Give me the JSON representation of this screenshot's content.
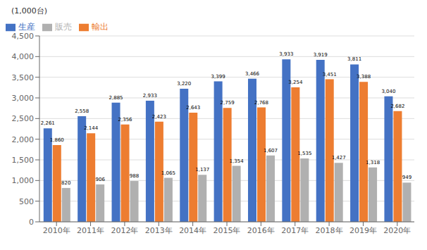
{
  "chart_data": {
    "type": "bar",
    "y_label": "(1,000台)",
    "categories": [
      "2010年",
      "2011年",
      "2012年",
      "2013年",
      "2014年",
      "2015年",
      "2016年",
      "2017年",
      "2018年",
      "2019年",
      "2020年"
    ],
    "series": [
      {
        "name": "生産",
        "color": "#4472C4",
        "values": [
          2261,
          2558,
          2885,
          2933,
          3220,
          3399,
          3466,
          3933,
          3919,
          3811,
          3040
        ],
        "value_labels": [
          "2,261",
          "2,558",
          "2,885",
          "2,933",
          "3,220",
          "3,399",
          "3,466",
          "3,933",
          "3,919",
          "3,811",
          "3,040"
        ]
      },
      {
        "name": "輸出",
        "color": "#ED7D31",
        "values": [
          1860,
          2144,
          2356,
          2423,
          2643,
          2759,
          2768,
          3254,
          3451,
          3388,
          2682
        ],
        "value_labels": [
          "1,860",
          "2,144",
          "2,356",
          "2,423",
          "2,643",
          "2,759",
          "2,768",
          "3,254",
          "3,451",
          "3,388",
          "2,682"
        ]
      },
      {
        "name": "販売",
        "color": "#B0B0B0",
        "values": [
          820,
          906,
          988,
          1065,
          1137,
          1354,
          1607,
          1535,
          1427,
          1318,
          949
        ],
        "value_labels": [
          "820",
          "906",
          "988",
          "1,065",
          "1,137",
          "1,354",
          "1,607",
          "1,535",
          "1,427",
          "1,318",
          "949"
        ]
      }
    ],
    "ylim": [
      0,
      4500
    ],
    "yticks": [
      0,
      500,
      {
        "value": 1000,
        "label": "1,000"
      },
      {
        "value": 1500,
        "label": "1,500"
      },
      {
        "value": 2000,
        "label": "2,000"
      },
      {
        "value": 2500,
        "label": "2,500"
      },
      {
        "value": 3000,
        "label": "3,000"
      },
      {
        "value": 3500,
        "label": "3,500"
      },
      {
        "value": 4000,
        "label": "4,000"
      },
      {
        "value": 4500,
        "label": "4,500"
      }
    ],
    "grid": true,
    "legend": "upper left",
    "data_labels": true
  }
}
